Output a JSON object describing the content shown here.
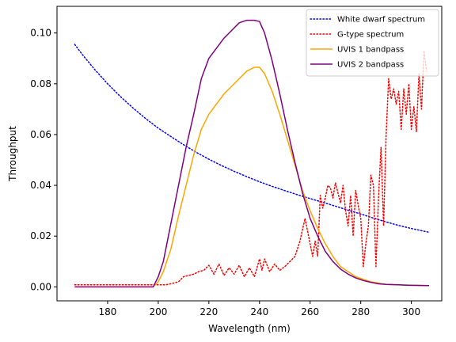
{
  "chart_data": {
    "type": "line",
    "xlabel": "Wavelength (nm)",
    "ylabel": "Throughput",
    "xlim": [
      160,
      312
    ],
    "ylim": [
      -0.0055,
      0.1105
    ],
    "xticks": [
      180,
      200,
      220,
      240,
      260,
      280,
      300
    ],
    "yticks": [
      0.0,
      0.02,
      0.04,
      0.06,
      0.08,
      0.1
    ],
    "ytick_labels": [
      "0.00",
      "0.02",
      "0.04",
      "0.06",
      "0.08",
      "0.10"
    ],
    "grid": false,
    "legend_placement": "top-right",
    "series": [
      {
        "name": "White dwarf spectrum",
        "color": "#0000ff",
        "style": "dotted",
        "x": [
          167,
          170,
          175,
          180,
          185,
          190,
          195,
          200,
          205,
          210,
          215,
          220,
          225,
          230,
          235,
          240,
          245,
          250,
          255,
          260,
          265,
          270,
          275,
          280,
          285,
          290,
          295,
          300,
          307
        ],
        "y": [
          0.0955,
          0.0915,
          0.0855,
          0.08,
          0.075,
          0.0705,
          0.0663,
          0.0625,
          0.0592,
          0.056,
          0.053,
          0.0503,
          0.0478,
          0.0455,
          0.0434,
          0.0414,
          0.0396,
          0.0379,
          0.0363,
          0.0348,
          0.0333,
          0.0318,
          0.0302,
          0.0287,
          0.0271,
          0.0256,
          0.0242,
          0.023,
          0.0215
        ]
      },
      {
        "name": "G-type spectrum",
        "color": "#ff0000",
        "style": "dotted",
        "x": [
          167,
          180,
          190,
          198,
          203,
          206,
          208,
          210,
          212,
          214,
          216,
          218,
          220,
          222,
          224,
          226,
          228,
          230,
          232,
          234,
          236,
          238,
          240,
          241,
          242,
          244,
          246,
          248,
          250,
          252,
          254,
          256,
          258,
          259,
          260,
          261,
          262,
          263,
          264,
          265,
          266,
          267,
          268,
          269,
          270,
          271,
          272,
          273,
          274,
          275,
          276,
          277,
          278,
          279,
          280,
          281,
          282,
          283,
          284,
          285,
          286,
          287,
          288,
          289,
          290,
          291,
          292,
          293,
          294,
          295,
          296,
          297,
          298,
          299,
          300,
          301,
          302,
          303,
          304,
          305,
          306
        ],
        "y": [
          0.0008,
          0.0008,
          0.0008,
          0.0008,
          0.0008,
          0.0015,
          0.002,
          0.004,
          0.0045,
          0.005,
          0.006,
          0.0065,
          0.0085,
          0.005,
          0.009,
          0.0045,
          0.0075,
          0.005,
          0.0085,
          0.004,
          0.0075,
          0.004,
          0.011,
          0.0065,
          0.011,
          0.006,
          0.009,
          0.0065,
          0.008,
          0.01,
          0.012,
          0.018,
          0.027,
          0.022,
          0.017,
          0.012,
          0.018,
          0.012,
          0.036,
          0.031,
          0.035,
          0.04,
          0.039,
          0.035,
          0.041,
          0.037,
          0.033,
          0.04,
          0.03,
          0.024,
          0.036,
          0.02,
          0.038,
          0.032,
          0.027,
          0.008,
          0.017,
          0.024,
          0.044,
          0.04,
          0.008,
          0.035,
          0.055,
          0.024,
          0.0595,
          0.082,
          0.074,
          0.078,
          0.072,
          0.077,
          0.062,
          0.078,
          0.068,
          0.08,
          0.062,
          0.071,
          0.061,
          0.084,
          0.07,
          0.093,
          0.085
        ]
      },
      {
        "name": "UVIS 1 bandpass",
        "color": "#ffa500",
        "style": "solid",
        "x": [
          167,
          180,
          190,
          198,
          200,
          202,
          205,
          208,
          211,
          214,
          217,
          220,
          223,
          226,
          229,
          232,
          235,
          238,
          240,
          242,
          245,
          248,
          251,
          254,
          257,
          260,
          263,
          266,
          269,
          272,
          275,
          278,
          281,
          284,
          287,
          290,
          295,
          300,
          307
        ],
        "y": [
          0.0,
          0.0,
          0.0,
          0.0,
          0.002,
          0.006,
          0.015,
          0.028,
          0.04,
          0.052,
          0.062,
          0.068,
          0.072,
          0.076,
          0.079,
          0.082,
          0.085,
          0.0865,
          0.0865,
          0.084,
          0.077,
          0.068,
          0.058,
          0.048,
          0.038,
          0.03,
          0.023,
          0.017,
          0.012,
          0.008,
          0.006,
          0.004,
          0.003,
          0.002,
          0.0015,
          0.001,
          0.0008,
          0.0006,
          0.0005
        ]
      },
      {
        "name": "UVIS 2 bandpass",
        "color": "#800080",
        "style": "solid",
        "x": [
          167,
          180,
          190,
          198,
          200,
          202,
          205,
          208,
          211,
          214,
          217,
          220,
          223,
          226,
          229,
          232,
          235,
          238,
          240,
          242,
          245,
          248,
          251,
          254,
          257,
          260,
          263,
          266,
          269,
          272,
          275,
          278,
          281,
          284,
          287,
          290,
          295,
          300,
          307
        ],
        "y": [
          0.0,
          0.0,
          0.0,
          0.0,
          0.004,
          0.01,
          0.025,
          0.04,
          0.055,
          0.068,
          0.082,
          0.09,
          0.094,
          0.098,
          0.101,
          0.104,
          0.105,
          0.105,
          0.1045,
          0.1,
          0.089,
          0.076,
          0.062,
          0.049,
          0.037,
          0.027,
          0.02,
          0.014,
          0.01,
          0.007,
          0.005,
          0.0035,
          0.0025,
          0.0018,
          0.0012,
          0.001,
          0.0008,
          0.0006,
          0.0005
        ]
      }
    ]
  }
}
